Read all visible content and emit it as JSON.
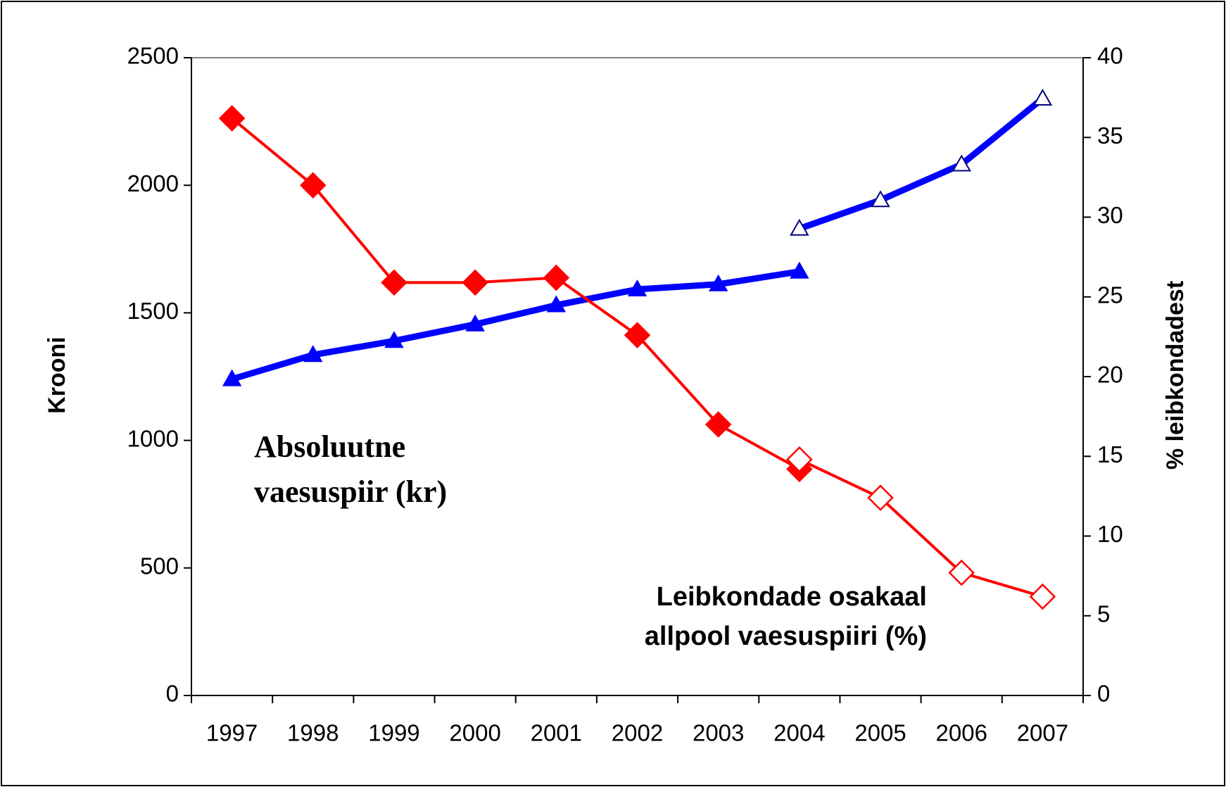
{
  "chart_data": {
    "type": "line",
    "categories": [
      "1997",
      "1998",
      "1999",
      "2000",
      "2001",
      "2002",
      "2003",
      "2004",
      "2005",
      "2006",
      "2007"
    ],
    "series": [
      {
        "color": "#0000ff",
        "axis": "y",
        "marker": "triangle",
        "filled": true,
        "values": [
          1240,
          1335,
          1390,
          1455,
          1530,
          1592,
          1612,
          1662,
          null,
          null,
          null
        ]
      },
      {
        "color": "#0000ff",
        "axis": "y",
        "marker": "triangle",
        "filled": false,
        "values": [
          null,
          null,
          null,
          null,
          null,
          null,
          null,
          1830,
          1942,
          2082,
          2340
        ]
      },
      {
        "color": "#ff0000",
        "axis": "y2",
        "marker": "diamond",
        "filled": true,
        "values": [
          36.2,
          32.0,
          25.9,
          25.9,
          26.2,
          22.6,
          17.0,
          14.2,
          null,
          null,
          null
        ]
      },
      {
        "color": "#ff0000",
        "axis": "y2",
        "marker": "diamond",
        "filled": false,
        "values": [
          null,
          null,
          null,
          null,
          null,
          null,
          null,
          14.8,
          12.4,
          7.7,
          6.2
        ]
      }
    ],
    "ylabel": "Krooni",
    "y2label": "% leibkondadest",
    "ylim": [
      0,
      2500
    ],
    "yticks": [
      0,
      500,
      1000,
      1500,
      2000,
      2500
    ],
    "y2lim": [
      0,
      40
    ],
    "y2ticks": [
      0,
      5,
      10,
      15,
      20,
      25,
      30,
      35,
      40
    ],
    "grid": false,
    "annotations": [
      {
        "lines": [
          "Absoluutne",
          "vaesuspiir (kr)"
        ]
      },
      {
        "lines": [
          "Leibkondade osakaal",
          "allpool vaesuspiiri (%)"
        ]
      }
    ]
  }
}
